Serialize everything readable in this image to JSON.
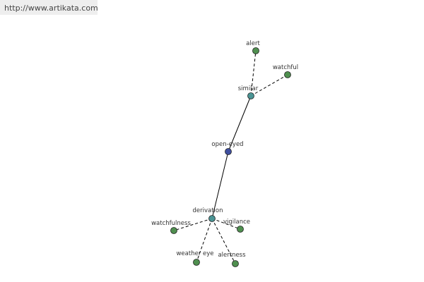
{
  "header": {
    "url": "http://www.artikata.com"
  },
  "nodes": [
    {
      "label": "alert"
    },
    {
      "label": "watchful"
    },
    {
      "label": "similar"
    },
    {
      "label": "open-eyed"
    },
    {
      "label": "derivation"
    },
    {
      "label": "watchfulness"
    },
    {
      "label": "vigilance"
    },
    {
      "label": "weather eye"
    },
    {
      "label": "alertness"
    }
  ]
}
